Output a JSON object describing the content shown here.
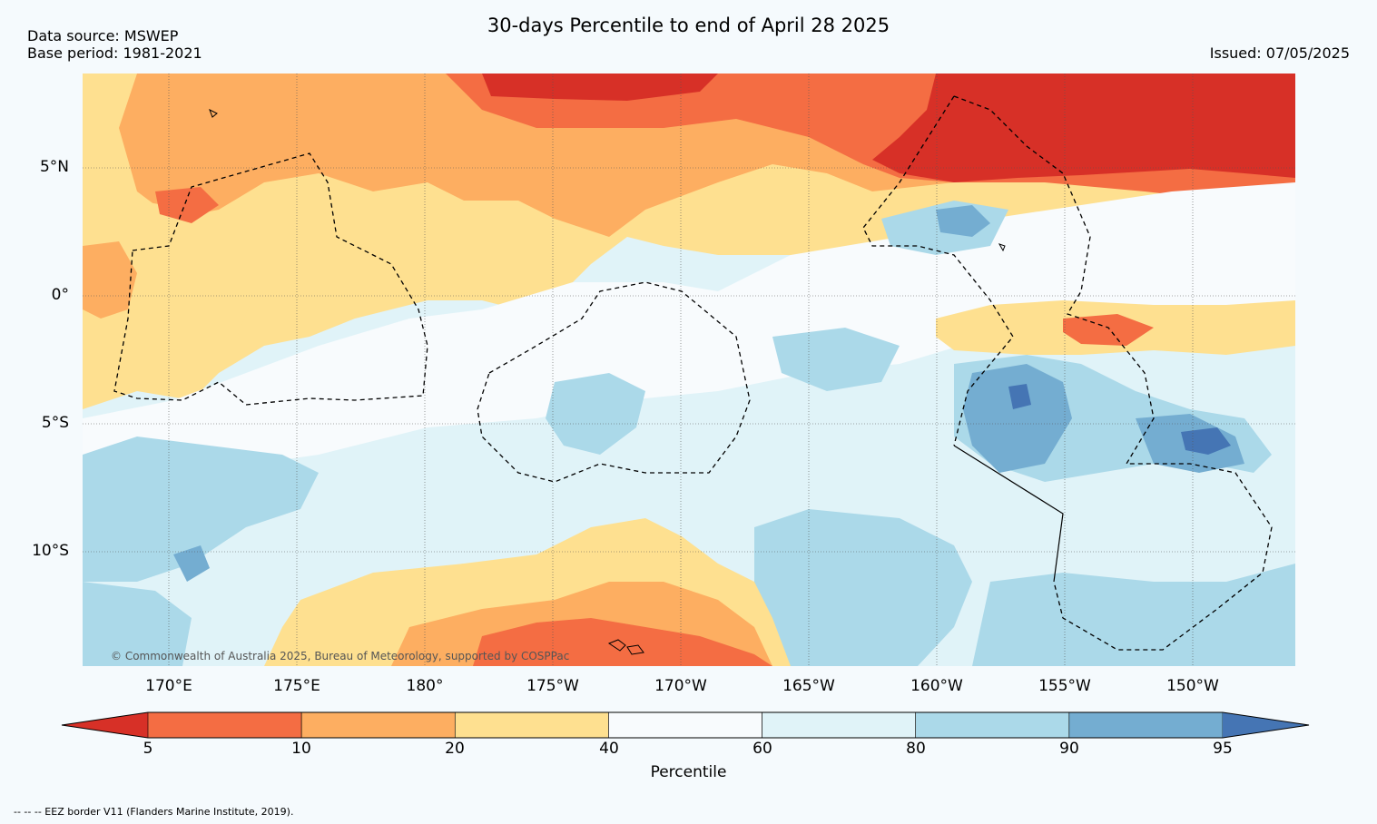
{
  "header": {
    "title": "30-days Percentile to end of April 28 2025",
    "data_source": "Data source: MSWEP",
    "base_period": "Base period: 1981-2021",
    "issued": "Issued: 07/05/2025"
  },
  "map": {
    "lat_labels": [
      "5°N",
      "0°",
      "5°S",
      "10°S"
    ],
    "lon_labels": [
      "170°E",
      "175°E",
      "180°",
      "175°W",
      "170°W",
      "165°W",
      "160°W",
      "155°W",
      "150°W"
    ],
    "copyright": "© Commonwealth of Australia 2025, Bureau of Meteorology, supported by COSPPac",
    "eez_note": "-- -- -- EEZ border V11 (Flanders Marine Institute, 2019)."
  },
  "colorbar": {
    "label": "Percentile",
    "ticks": [
      "5",
      "10",
      "20",
      "40",
      "60",
      "80",
      "90",
      "95"
    ],
    "colors": [
      "#d73027",
      "#f46d43",
      "#fdae61",
      "#fee090",
      "#f8fbfd",
      "#e0f3f8",
      "#abd9e9",
      "#74add1",
      "#4575b4"
    ]
  }
}
